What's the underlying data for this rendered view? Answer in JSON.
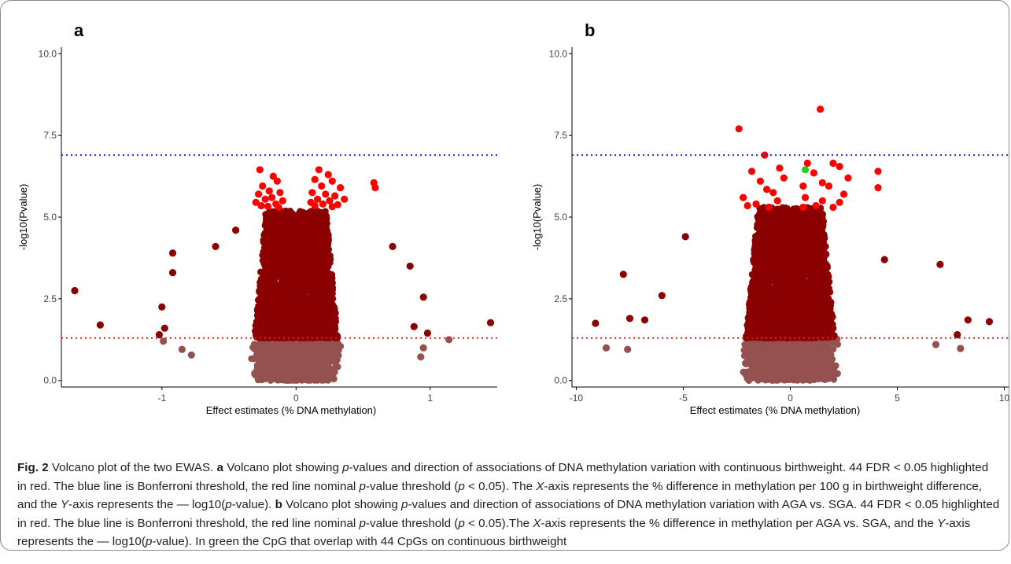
{
  "chart_data": [
    {
      "panel_label": "a",
      "type": "scatter",
      "xlabel": "Effect estimates (% DNA methylation)",
      "ylabel": "-log10(Pvalue)",
      "xlim": [
        -1.75,
        1.5
      ],
      "ylim": [
        -0.2,
        10.2
      ],
      "xticks": [
        -1,
        0,
        1
      ],
      "yticks": [
        0.0,
        2.5,
        5.0,
        7.5,
        10.0
      ],
      "ytick_labels": [
        "0.0",
        "2.5",
        "5.0",
        "7.5",
        "10.0"
      ],
      "grid": false,
      "reference_lines": [
        {
          "y": 6.9,
          "color": "#1a2be6",
          "style": "dotted"
        },
        {
          "y": 1.3,
          "color": "#e62020",
          "style": "dotted"
        }
      ],
      "colors": {
        "nonsignificant": "#955050",
        "nominal": "#8b0000",
        "fdr": "#ff0000",
        "overlap": "#22d022"
      },
      "cloud": {
        "spread_x": 0.3,
        "sig_ymax": 5.2,
        "nonsig_ymax": 1.3
      },
      "highlighted": [
        {
          "x": -0.27,
          "y": 6.45,
          "c": "fdr"
        },
        {
          "x": -0.17,
          "y": 6.25,
          "c": "fdr"
        },
        {
          "x": -0.14,
          "y": 6.1,
          "c": "fdr"
        },
        {
          "x": -0.25,
          "y": 5.95,
          "c": "fdr"
        },
        {
          "x": -0.2,
          "y": 5.8,
          "c": "fdr"
        },
        {
          "x": -0.12,
          "y": 5.75,
          "c": "fdr"
        },
        {
          "x": -0.28,
          "y": 5.7,
          "c": "fdr"
        },
        {
          "x": -0.18,
          "y": 5.6,
          "c": "fdr"
        },
        {
          "x": -0.23,
          "y": 5.55,
          "c": "fdr"
        },
        {
          "x": -0.1,
          "y": 5.5,
          "c": "fdr"
        },
        {
          "x": -0.3,
          "y": 5.45,
          "c": "fdr"
        },
        {
          "x": -0.15,
          "y": 5.4,
          "c": "fdr"
        },
        {
          "x": -0.26,
          "y": 5.35,
          "c": "fdr"
        },
        {
          "x": -0.21,
          "y": 5.33,
          "c": "fdr"
        },
        {
          "x": -0.13,
          "y": 5.3,
          "c": "fdr"
        },
        {
          "x": 0.17,
          "y": 6.45,
          "c": "fdr"
        },
        {
          "x": 0.24,
          "y": 6.3,
          "c": "fdr"
        },
        {
          "x": 0.14,
          "y": 6.15,
          "c": "fdr"
        },
        {
          "x": 0.27,
          "y": 6.1,
          "c": "fdr"
        },
        {
          "x": 0.19,
          "y": 5.95,
          "c": "fdr"
        },
        {
          "x": 0.58,
          "y": 6.05,
          "c": "fdr"
        },
        {
          "x": 0.59,
          "y": 5.9,
          "c": "fdr"
        },
        {
          "x": 0.33,
          "y": 5.9,
          "c": "fdr"
        },
        {
          "x": 0.12,
          "y": 5.75,
          "c": "fdr"
        },
        {
          "x": 0.22,
          "y": 5.7,
          "c": "fdr"
        },
        {
          "x": 0.29,
          "y": 5.65,
          "c": "fdr"
        },
        {
          "x": 0.16,
          "y": 5.55,
          "c": "fdr"
        },
        {
          "x": 0.36,
          "y": 5.55,
          "c": "fdr"
        },
        {
          "x": 0.25,
          "y": 5.5,
          "c": "fdr"
        },
        {
          "x": 0.11,
          "y": 5.45,
          "c": "fdr"
        },
        {
          "x": 0.2,
          "y": 5.4,
          "c": "fdr"
        },
        {
          "x": 0.31,
          "y": 5.38,
          "c": "fdr"
        },
        {
          "x": 0.14,
          "y": 5.35,
          "c": "fdr"
        },
        {
          "x": 0.27,
          "y": 5.32,
          "c": "fdr"
        },
        {
          "x": -1.65,
          "y": 2.75,
          "c": "nominal"
        },
        {
          "x": -1.46,
          "y": 1.7,
          "c": "nominal"
        },
        {
          "x": -0.92,
          "y": 3.9,
          "c": "nominal"
        },
        {
          "x": -0.92,
          "y": 3.3,
          "c": "nominal"
        },
        {
          "x": -1.0,
          "y": 2.25,
          "c": "nominal"
        },
        {
          "x": -1.02,
          "y": 1.4,
          "c": "nominal"
        },
        {
          "x": -0.98,
          "y": 1.6,
          "c": "nominal"
        },
        {
          "x": 1.45,
          "y": 1.77,
          "c": "nominal"
        },
        {
          "x": 0.95,
          "y": 2.55,
          "c": "nominal"
        },
        {
          "x": 0.98,
          "y": 1.45,
          "c": "nominal"
        },
        {
          "x": 0.88,
          "y": 1.65,
          "c": "nominal"
        },
        {
          "x": 0.85,
          "y": 3.5,
          "c": "nominal"
        },
        {
          "x": 0.72,
          "y": 4.1,
          "c": "nominal"
        },
        {
          "x": -0.6,
          "y": 4.1,
          "c": "nominal"
        },
        {
          "x": -0.45,
          "y": 4.6,
          "c": "nominal"
        },
        {
          "x": 1.14,
          "y": 1.25,
          "c": "nonsignificant"
        },
        {
          "x": 0.95,
          "y": 1.0,
          "c": "nonsignificant"
        },
        {
          "x": -0.85,
          "y": 0.95,
          "c": "nonsignificant"
        },
        {
          "x": -0.78,
          "y": 0.78,
          "c": "nonsignificant"
        },
        {
          "x": 0.93,
          "y": 0.72,
          "c": "nonsignificant"
        },
        {
          "x": -0.99,
          "y": 1.2,
          "c": "nonsignificant"
        }
      ]
    },
    {
      "panel_label": "b",
      "type": "scatter",
      "xlabel": "Effect estimates (% DNA methylation)",
      "ylabel": "-log10(Pvalue)",
      "xlim": [
        -10.2,
        10.2
      ],
      "ylim": [
        -0.2,
        10.2
      ],
      "xticks": [
        -10,
        -5,
        0,
        5,
        10
      ],
      "yticks": [
        0.0,
        2.5,
        5.0,
        7.5,
        10.0
      ],
      "ytick_labels": [
        "0.0",
        "2.5",
        "5.0",
        "7.5",
        "10.0"
      ],
      "grid": false,
      "reference_lines": [
        {
          "y": 6.9,
          "color": "#1a2be6",
          "style": "dotted"
        },
        {
          "y": 1.3,
          "color": "#e62020",
          "style": "dotted"
        }
      ],
      "colors": {
        "nonsignificant": "#955050",
        "nominal": "#8b0000",
        "fdr": "#ff0000",
        "overlap": "#22d022"
      },
      "cloud": {
        "spread_x": 2.0,
        "sig_ymax": 5.3,
        "nonsig_ymax": 1.3
      },
      "highlighted": [
        {
          "x": 1.4,
          "y": 8.3,
          "c": "fdr"
        },
        {
          "x": -2.4,
          "y": 7.7,
          "c": "fdr"
        },
        {
          "x": -1.2,
          "y": 6.9,
          "c": "fdr"
        },
        {
          "x": 0.8,
          "y": 6.65,
          "c": "fdr"
        },
        {
          "x": 2.0,
          "y": 6.65,
          "c": "fdr"
        },
        {
          "x": 2.3,
          "y": 6.55,
          "c": "fdr"
        },
        {
          "x": -0.5,
          "y": 6.5,
          "c": "fdr"
        },
        {
          "x": -1.8,
          "y": 6.4,
          "c": "fdr"
        },
        {
          "x": 4.1,
          "y": 6.4,
          "c": "fdr"
        },
        {
          "x": 1.1,
          "y": 6.35,
          "c": "fdr"
        },
        {
          "x": -0.3,
          "y": 6.2,
          "c": "fdr"
        },
        {
          "x": 2.7,
          "y": 6.2,
          "c": "fdr"
        },
        {
          "x": -1.4,
          "y": 6.1,
          "c": "fdr"
        },
        {
          "x": 1.5,
          "y": 6.05,
          "c": "fdr"
        },
        {
          "x": 4.1,
          "y": 5.9,
          "c": "fdr"
        },
        {
          "x": 0.6,
          "y": 5.95,
          "c": "fdr"
        },
        {
          "x": 1.8,
          "y": 5.95,
          "c": "fdr"
        },
        {
          "x": -1.1,
          "y": 5.85,
          "c": "fdr"
        },
        {
          "x": -0.8,
          "y": 5.75,
          "c": "fdr"
        },
        {
          "x": 2.5,
          "y": 5.7,
          "c": "fdr"
        },
        {
          "x": -2.2,
          "y": 5.6,
          "c": "fdr"
        },
        {
          "x": 0.7,
          "y": 5.6,
          "c": "fdr"
        },
        {
          "x": 1.5,
          "y": 5.5,
          "c": "fdr"
        },
        {
          "x": -0.6,
          "y": 5.5,
          "c": "fdr"
        },
        {
          "x": 2.3,
          "y": 5.45,
          "c": "fdr"
        },
        {
          "x": -1.6,
          "y": 5.4,
          "c": "fdr"
        },
        {
          "x": -2.0,
          "y": 5.35,
          "c": "fdr"
        },
        {
          "x": 1.2,
          "y": 5.35,
          "c": "fdr"
        },
        {
          "x": -1.0,
          "y": 5.3,
          "c": "fdr"
        },
        {
          "x": 0.6,
          "y": 5.3,
          "c": "fdr"
        },
        {
          "x": 2.0,
          "y": 5.3,
          "c": "fdr"
        },
        {
          "x": 0.7,
          "y": 6.45,
          "c": "overlap"
        },
        {
          "x": -9.1,
          "y": 1.75,
          "c": "nominal"
        },
        {
          "x": -7.8,
          "y": 3.25,
          "c": "nominal"
        },
        {
          "x": -7.5,
          "y": 1.9,
          "c": "nominal"
        },
        {
          "x": -6.8,
          "y": 1.85,
          "c": "nominal"
        },
        {
          "x": -6.0,
          "y": 2.6,
          "c": "nominal"
        },
        {
          "x": -4.9,
          "y": 4.4,
          "c": "nominal"
        },
        {
          "x": 7.0,
          "y": 3.55,
          "c": "nominal"
        },
        {
          "x": 8.3,
          "y": 1.85,
          "c": "nominal"
        },
        {
          "x": 9.3,
          "y": 1.8,
          "c": "nominal"
        },
        {
          "x": 7.8,
          "y": 1.4,
          "c": "nominal"
        },
        {
          "x": 4.4,
          "y": 3.7,
          "c": "nominal"
        },
        {
          "x": -8.6,
          "y": 1.0,
          "c": "nonsignificant"
        },
        {
          "x": -7.6,
          "y": 0.95,
          "c": "nonsignificant"
        },
        {
          "x": 7.95,
          "y": 0.98,
          "c": "nonsignificant"
        },
        {
          "x": 6.8,
          "y": 1.1,
          "c": "nonsignificant"
        }
      ]
    }
  ],
  "caption": {
    "parts": [
      {
        "t": "Fig. 2",
        "s": "b"
      },
      {
        "t": "  Volcano plot of the two EWAS. "
      },
      {
        "t": "a",
        "s": "b"
      },
      {
        "t": " Volcano plot showing "
      },
      {
        "t": "p",
        "s": "i"
      },
      {
        "t": "-values and direction of associations of DNA methylation variation with continuous birthweight. 44 FDR < 0.05 highlighted in red. The blue line is Bonferroni threshold, the red line nominal "
      },
      {
        "t": "p",
        "s": "i"
      },
      {
        "t": "-value threshold ("
      },
      {
        "t": "p",
        "s": "i"
      },
      {
        "t": " < 0.05). The "
      },
      {
        "t": "X",
        "s": "i"
      },
      {
        "t": "-axis represents the % difference in methylation per 100 g in birthweight difference, and the "
      },
      {
        "t": "Y",
        "s": "i"
      },
      {
        "t": "-axis represents the — log10("
      },
      {
        "t": "p",
        "s": "i"
      },
      {
        "t": "-value). "
      },
      {
        "t": "b",
        "s": "b"
      },
      {
        "t": " Volcano plot showing "
      },
      {
        "t": "p",
        "s": "i"
      },
      {
        "t": "-values and direction of associations of DNA methylation variation with AGA vs. SGA. 44 FDR < 0.05 highlighted in red. The blue line is Bonferroni threshold, the red line nominal "
      },
      {
        "t": "p",
        "s": "i"
      },
      {
        "t": "-value threshold ("
      },
      {
        "t": "p",
        "s": "i"
      },
      {
        "t": " < 0.05).The "
      },
      {
        "t": "X",
        "s": "i"
      },
      {
        "t": "-axis represents the % difference in methylation per AGA vs. SGA, and the "
      },
      {
        "t": "Y",
        "s": "i"
      },
      {
        "t": "-axis represents the — log10("
      },
      {
        "t": "p",
        "s": "i"
      },
      {
        "t": "-value). In green the CpG that overlap with 44 CpGs on continuous birthweight"
      }
    ]
  }
}
